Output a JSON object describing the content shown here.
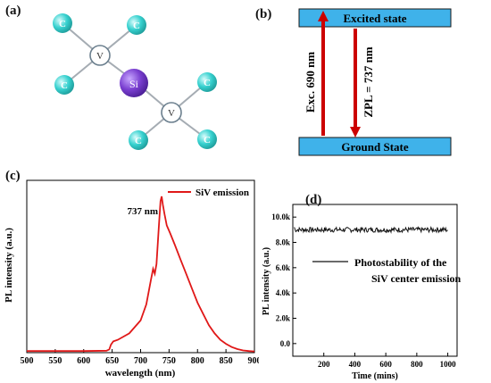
{
  "panels": {
    "a": "(a)",
    "b": "(b)",
    "c": "(c)",
    "d": "(d)"
  },
  "structure": {
    "atoms": {
      "carbon": "C",
      "vacancy": "V",
      "silicon": "Si"
    },
    "colors": {
      "carbon": "#36d1cf",
      "vacancy_ring": "#6b7f8e",
      "silicon": "#7a3fd0"
    }
  },
  "energy_diagram": {
    "excited_label": "Excited state",
    "ground_label": "Ground State",
    "excitation_label": "Exc. 690 nm",
    "emission_label": "ZPL = 737 nm",
    "colors": {
      "level": "#3fb2ea",
      "arrow": "#cc0000"
    }
  },
  "chart_data": [
    {
      "id": "c",
      "type": "line",
      "xlabel": "wavelength (nm)",
      "ylabel": "PL intensity (a.u.)",
      "xlim": [
        500,
        900
      ],
      "xticks": [
        500,
        550,
        600,
        650,
        700,
        750,
        800,
        850,
        900
      ],
      "ylim": [
        0,
        1.07
      ],
      "legend": {
        "label": "SiV emission",
        "placement": "top-right"
      },
      "annotation": {
        "text": "737 nm",
        "x": 737
      },
      "color": "#e01818",
      "series": [
        {
          "name": "SiV emission",
          "x": [
            500,
            550,
            600,
            640,
            645,
            648,
            652,
            660,
            680,
            700,
            710,
            718,
            722,
            725,
            728,
            732,
            735,
            737,
            739,
            742,
            746,
            752,
            760,
            770,
            780,
            790,
            800,
            810,
            820,
            830,
            840,
            850,
            860,
            870,
            880,
            890,
            900
          ],
          "y": [
            0.01,
            0.01,
            0.01,
            0.012,
            0.02,
            0.05,
            0.07,
            0.08,
            0.12,
            0.2,
            0.3,
            0.45,
            0.52,
            0.49,
            0.55,
            0.78,
            0.94,
            0.97,
            0.92,
            0.86,
            0.79,
            0.74,
            0.67,
            0.58,
            0.49,
            0.4,
            0.31,
            0.24,
            0.17,
            0.12,
            0.08,
            0.055,
            0.035,
            0.022,
            0.014,
            0.01,
            0.008
          ]
        }
      ]
    },
    {
      "id": "d",
      "type": "line",
      "xlabel": "Time (mins)",
      "ylabel": "PL intensity (a.u.)",
      "xlim": [
        0,
        1060
      ],
      "xticks": [
        200,
        400,
        600,
        800,
        1000
      ],
      "ylim": [
        -1000,
        11000
      ],
      "yticks": [
        0,
        2000,
        4000,
        6000,
        8000,
        10000
      ],
      "ytick_labels": [
        "0.0",
        "2.0k",
        "4.0k",
        "6.0k",
        "8.0k",
        "10.0k"
      ],
      "legend": {
        "label": "Photostability of the",
        "label2": "SiV center emission",
        "placement": "center"
      },
      "color": "#111111",
      "series": [
        {
          "name": "Photostability of the SiV center emission",
          "x_start": 10,
          "x_end": 1000,
          "n_points": 220,
          "mean": 9000,
          "noise_amplitude": 200,
          "first_value": 9200
        }
      ]
    }
  ]
}
